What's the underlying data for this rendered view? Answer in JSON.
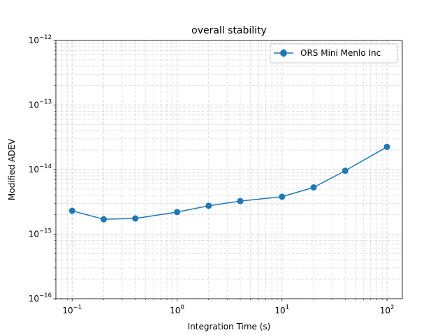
{
  "chart_data": {
    "type": "line",
    "title": "overall stability",
    "xlabel": "Integration Time (s)",
    "ylabel": "Modified ADEV",
    "x_scale": "log",
    "y_scale": "log",
    "xlim": [
      0.07,
      140
    ],
    "ylim": [
      1e-16,
      1e-12
    ],
    "grid": true,
    "legend_position": "top-right",
    "x_ticks": [
      {
        "value": 0.1,
        "base": "10",
        "exp": "−1"
      },
      {
        "value": 1,
        "base": "10",
        "exp": "0"
      },
      {
        "value": 10,
        "base": "10",
        "exp": "1"
      },
      {
        "value": 100,
        "base": "10",
        "exp": "2"
      }
    ],
    "y_ticks": [
      {
        "value": 1e-16,
        "base": "10",
        "exp": "−16"
      },
      {
        "value": 1e-15,
        "base": "10",
        "exp": "−15"
      },
      {
        "value": 1e-14,
        "base": "10",
        "exp": "−14"
      },
      {
        "value": 1e-13,
        "base": "10",
        "exp": "−13"
      },
      {
        "value": 1e-12,
        "base": "10",
        "exp": "−12"
      }
    ],
    "series": [
      {
        "name": "ORS Mini Menlo Inc",
        "color": "#1f77b4",
        "marker": "circle",
        "x": [
          0.1,
          0.2,
          0.4,
          1,
          2,
          4,
          10,
          20,
          40,
          100
        ],
        "y": [
          2.3e-15,
          1.7e-15,
          1.75e-15,
          2.2e-15,
          2.75e-15,
          3.25e-15,
          3.8e-15,
          5.3e-15,
          9.6e-15,
          2.25e-14
        ]
      }
    ]
  }
}
